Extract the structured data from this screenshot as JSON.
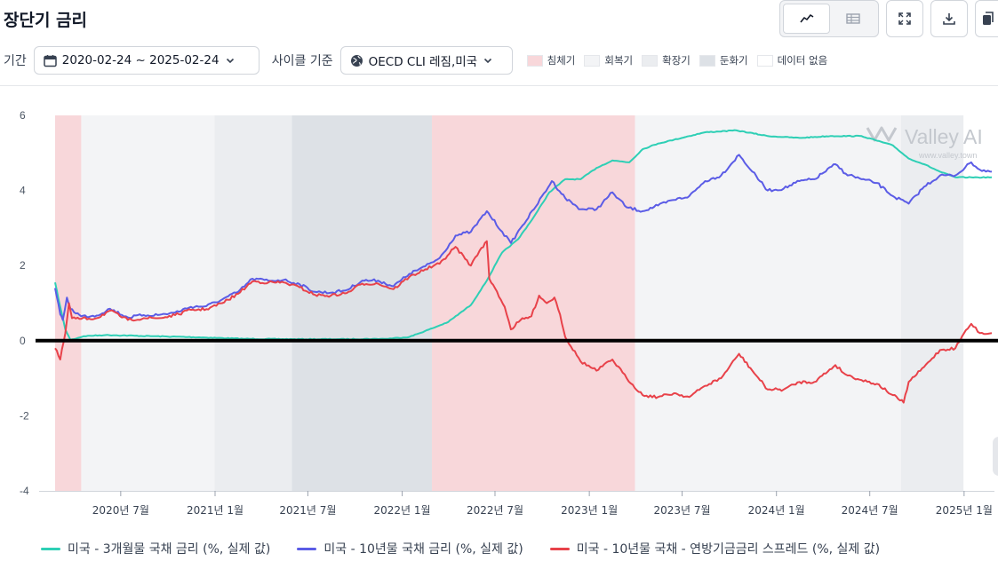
{
  "page": {
    "title": "장단기 금리"
  },
  "controls": {
    "period_label": "기간",
    "period_value": "2020-02-24 ~ 2025-02-24",
    "cycle_label": "사이클 기준",
    "cycle_value": "OECD CLI 레짐,미국"
  },
  "phases": [
    {
      "label": "침체기",
      "color": "#f8d7da"
    },
    {
      "label": "회복기",
      "color": "#f3f4f6"
    },
    {
      "label": "확장기",
      "color": "#ebedf0"
    },
    {
      "label": "둔화기",
      "color": "#dde1e6"
    },
    {
      "label": "데이터 없음",
      "color": "#ffffff"
    }
  ],
  "watermark": {
    "brand": "Valley AI",
    "url": "www.valley.town"
  },
  "icons": [
    "line-chart-icon",
    "table-icon",
    "expand-icon",
    "download-icon",
    "copy-icon",
    "calendar-icon",
    "chevron-down-icon",
    "globe-icon"
  ],
  "chart_data": {
    "type": "line",
    "ylim": [
      -4,
      6
    ],
    "yticks": [
      -4,
      -2,
      0,
      2,
      4,
      6
    ],
    "xticks": [
      {
        "date": "2020-07-01",
        "label": "2020년 7월"
      },
      {
        "date": "2021-01-01",
        "label": "2021년 1월"
      },
      {
        "date": "2021-07-01",
        "label": "2021년 7월"
      },
      {
        "date": "2022-01-01",
        "label": "2022년 1월"
      },
      {
        "date": "2022-07-01",
        "label": "2022년 7월"
      },
      {
        "date": "2023-01-01",
        "label": "2023년 1월"
      },
      {
        "date": "2023-07-01",
        "label": "2023년 7월"
      },
      {
        "date": "2024-01-01",
        "label": "2024년 1월"
      },
      {
        "date": "2024-07-01",
        "label": "2024년 7월"
      },
      {
        "date": "2025-01-01",
        "label": "2025년 1월"
      }
    ],
    "xrange": [
      "2020-02-24",
      "2025-02-24"
    ],
    "reference_line": 0,
    "regimes": [
      {
        "start": "2020-02-24",
        "end": "2020-04-15",
        "phase": "침체기"
      },
      {
        "start": "2020-04-15",
        "end": "2020-12-31",
        "phase": "회복기"
      },
      {
        "start": "2020-12-31",
        "end": "2021-05-31",
        "phase": "확장기"
      },
      {
        "start": "2021-05-31",
        "end": "2022-02-28",
        "phase": "둔화기"
      },
      {
        "start": "2022-02-28",
        "end": "2023-03-31",
        "phase": "침체기"
      },
      {
        "start": "2023-03-31",
        "end": "2024-08-31",
        "phase": "회복기"
      },
      {
        "start": "2024-08-31",
        "end": "2024-12-31",
        "phase": "확장기"
      },
      {
        "start": "2024-12-31",
        "end": "2025-02-24",
        "phase": "데이터 없음"
      }
    ],
    "series": [
      {
        "name": "미국 - 3개월물 국채 금리 (%, 실제 값)",
        "color": "#2ecfb5",
        "points": [
          [
            "2020-02-24",
            1.55
          ],
          [
            "2020-03-05",
            0.9
          ],
          [
            "2020-03-15",
            0.3
          ],
          [
            "2020-03-25",
            0.02
          ],
          [
            "2020-04-20",
            0.12
          ],
          [
            "2020-06-01",
            0.15
          ],
          [
            "2020-09-01",
            0.12
          ],
          [
            "2020-12-01",
            0.09
          ],
          [
            "2021-03-01",
            0.05
          ],
          [
            "2021-06-01",
            0.04
          ],
          [
            "2021-09-01",
            0.04
          ],
          [
            "2021-12-01",
            0.05
          ],
          [
            "2022-01-15",
            0.1
          ],
          [
            "2022-03-01",
            0.33
          ],
          [
            "2022-04-01",
            0.5
          ],
          [
            "2022-05-15",
            0.95
          ],
          [
            "2022-06-15",
            1.6
          ],
          [
            "2022-07-15",
            2.35
          ],
          [
            "2022-08-15",
            2.7
          ],
          [
            "2022-09-15",
            3.3
          ],
          [
            "2022-10-15",
            3.95
          ],
          [
            "2022-11-15",
            4.3
          ],
          [
            "2022-12-15",
            4.3
          ],
          [
            "2023-01-15",
            4.6
          ],
          [
            "2023-02-15",
            4.8
          ],
          [
            "2023-03-20",
            4.75
          ],
          [
            "2023-04-15",
            5.1
          ],
          [
            "2023-05-15",
            5.25
          ],
          [
            "2023-06-15",
            5.35
          ],
          [
            "2023-07-15",
            5.45
          ],
          [
            "2023-08-15",
            5.55
          ],
          [
            "2023-10-15",
            5.6
          ],
          [
            "2023-12-15",
            5.45
          ],
          [
            "2024-02-15",
            5.4
          ],
          [
            "2024-04-15",
            5.45
          ],
          [
            "2024-06-15",
            5.45
          ],
          [
            "2024-08-15",
            5.2
          ],
          [
            "2024-09-15",
            4.85
          ],
          [
            "2024-10-15",
            4.7
          ],
          [
            "2024-11-15",
            4.5
          ],
          [
            "2024-12-15",
            4.35
          ],
          [
            "2025-01-15",
            4.35
          ],
          [
            "2025-02-24",
            4.35
          ]
        ]
      },
      {
        "name": "미국 - 10년물 국채 금리 (%, 실제 값)",
        "color": "#5b5ce6",
        "points": [
          [
            "2020-02-24",
            1.4
          ],
          [
            "2020-03-05",
            0.7
          ],
          [
            "2020-03-10",
            0.55
          ],
          [
            "2020-03-18",
            1.15
          ],
          [
            "2020-03-25",
            0.85
          ],
          [
            "2020-04-15",
            0.65
          ],
          [
            "2020-05-15",
            0.67
          ],
          [
            "2020-06-10",
            0.85
          ],
          [
            "2020-07-15",
            0.62
          ],
          [
            "2020-08-15",
            0.68
          ],
          [
            "2020-09-15",
            0.69
          ],
          [
            "2020-10-15",
            0.75
          ],
          [
            "2020-11-15",
            0.9
          ],
          [
            "2020-12-15",
            0.92
          ],
          [
            "2021-01-15",
            1.1
          ],
          [
            "2021-02-15",
            1.3
          ],
          [
            "2021-03-15",
            1.65
          ],
          [
            "2021-04-15",
            1.6
          ],
          [
            "2021-05-15",
            1.62
          ],
          [
            "2021-06-15",
            1.5
          ],
          [
            "2021-07-15",
            1.3
          ],
          [
            "2021-08-15",
            1.28
          ],
          [
            "2021-09-15",
            1.35
          ],
          [
            "2021-10-15",
            1.6
          ],
          [
            "2021-11-15",
            1.6
          ],
          [
            "2021-12-15",
            1.45
          ],
          [
            "2022-01-15",
            1.78
          ],
          [
            "2022-02-15",
            1.98
          ],
          [
            "2022-03-15",
            2.2
          ],
          [
            "2022-04-15",
            2.8
          ],
          [
            "2022-05-15",
            2.9
          ],
          [
            "2022-06-15",
            3.45
          ],
          [
            "2022-07-15",
            2.9
          ],
          [
            "2022-08-01",
            2.6
          ],
          [
            "2022-08-20",
            3.0
          ],
          [
            "2022-09-15",
            3.5
          ],
          [
            "2022-10-20",
            4.25
          ],
          [
            "2022-11-15",
            3.8
          ],
          [
            "2022-12-15",
            3.5
          ],
          [
            "2023-01-15",
            3.5
          ],
          [
            "2023-02-15",
            3.95
          ],
          [
            "2023-03-15",
            3.55
          ],
          [
            "2023-04-15",
            3.45
          ],
          [
            "2023-05-15",
            3.6
          ],
          [
            "2023-06-15",
            3.75
          ],
          [
            "2023-07-15",
            3.85
          ],
          [
            "2023-08-15",
            4.25
          ],
          [
            "2023-09-15",
            4.4
          ],
          [
            "2023-10-20",
            4.95
          ],
          [
            "2023-11-15",
            4.5
          ],
          [
            "2023-12-15",
            4.0
          ],
          [
            "2024-01-15",
            4.05
          ],
          [
            "2024-02-15",
            4.25
          ],
          [
            "2024-03-15",
            4.3
          ],
          [
            "2024-04-25",
            4.7
          ],
          [
            "2024-05-15",
            4.45
          ],
          [
            "2024-06-15",
            4.3
          ],
          [
            "2024-07-15",
            4.2
          ],
          [
            "2024-08-15",
            3.85
          ],
          [
            "2024-09-15",
            3.65
          ],
          [
            "2024-10-15",
            4.1
          ],
          [
            "2024-11-15",
            4.4
          ],
          [
            "2024-12-15",
            4.4
          ],
          [
            "2025-01-15",
            4.75
          ],
          [
            "2025-02-01",
            4.55
          ],
          [
            "2025-02-24",
            4.5
          ]
        ]
      },
      {
        "name": "미국 - 10년물 국채 - 연방기금금리 스프레드 (%, 실제 값)",
        "color": "#e8424a",
        "points": [
          [
            "2020-02-24",
            -0.2
          ],
          [
            "2020-03-05",
            -0.5
          ],
          [
            "2020-03-15",
            0.2
          ],
          [
            "2020-03-22",
            1.0
          ],
          [
            "2020-03-28",
            0.6
          ],
          [
            "2020-04-15",
            0.58
          ],
          [
            "2020-05-15",
            0.6
          ],
          [
            "2020-06-10",
            0.8
          ],
          [
            "2020-07-15",
            0.55
          ],
          [
            "2020-08-15",
            0.6
          ],
          [
            "2020-09-15",
            0.6
          ],
          [
            "2020-10-15",
            0.68
          ],
          [
            "2020-11-15",
            0.82
          ],
          [
            "2020-12-15",
            0.84
          ],
          [
            "2021-01-15",
            1.0
          ],
          [
            "2021-02-15",
            1.25
          ],
          [
            "2021-03-15",
            1.58
          ],
          [
            "2021-04-15",
            1.55
          ],
          [
            "2021-05-15",
            1.55
          ],
          [
            "2021-06-15",
            1.42
          ],
          [
            "2021-07-15",
            1.22
          ],
          [
            "2021-08-15",
            1.2
          ],
          [
            "2021-09-15",
            1.27
          ],
          [
            "2021-10-15",
            1.52
          ],
          [
            "2021-11-15",
            1.52
          ],
          [
            "2021-12-15",
            1.37
          ],
          [
            "2022-01-15",
            1.7
          ],
          [
            "2022-02-15",
            1.9
          ],
          [
            "2022-03-15",
            2.05
          ],
          [
            "2022-04-15",
            2.5
          ],
          [
            "2022-05-15",
            2.0
          ],
          [
            "2022-06-01",
            2.4
          ],
          [
            "2022-06-15",
            2.65
          ],
          [
            "2022-06-20",
            1.65
          ],
          [
            "2022-07-01",
            1.4
          ],
          [
            "2022-07-20",
            0.9
          ],
          [
            "2022-08-01",
            0.3
          ],
          [
            "2022-08-20",
            0.55
          ],
          [
            "2022-09-10",
            0.65
          ],
          [
            "2022-09-25",
            1.2
          ],
          [
            "2022-10-10",
            1.0
          ],
          [
            "2022-10-25",
            1.15
          ],
          [
            "2022-11-05",
            0.7
          ],
          [
            "2022-11-15",
            0.1
          ],
          [
            "2022-12-15",
            -0.55
          ],
          [
            "2023-01-15",
            -0.8
          ],
          [
            "2023-02-15",
            -0.5
          ],
          [
            "2023-03-15",
            -1.0
          ],
          [
            "2023-04-15",
            -1.45
          ],
          [
            "2023-05-15",
            -1.5
          ],
          [
            "2023-06-15",
            -1.4
          ],
          [
            "2023-07-15",
            -1.5
          ],
          [
            "2023-08-15",
            -1.2
          ],
          [
            "2023-09-15",
            -1.0
          ],
          [
            "2023-10-20",
            -0.35
          ],
          [
            "2023-11-15",
            -0.8
          ],
          [
            "2023-12-15",
            -1.3
          ],
          [
            "2024-01-15",
            -1.3
          ],
          [
            "2024-02-15",
            -1.1
          ],
          [
            "2024-03-15",
            -1.1
          ],
          [
            "2024-04-25",
            -0.65
          ],
          [
            "2024-05-15",
            -0.9
          ],
          [
            "2024-06-15",
            -1.05
          ],
          [
            "2024-07-15",
            -1.15
          ],
          [
            "2024-08-15",
            -1.45
          ],
          [
            "2024-09-05",
            -1.65
          ],
          [
            "2024-09-15",
            -1.1
          ],
          [
            "2024-10-15",
            -0.7
          ],
          [
            "2024-11-15",
            -0.25
          ],
          [
            "2024-12-15",
            -0.2
          ],
          [
            "2025-01-01",
            0.2
          ],
          [
            "2025-01-15",
            0.45
          ],
          [
            "2025-02-01",
            0.2
          ],
          [
            "2025-02-24",
            0.2
          ]
        ]
      }
    ]
  }
}
